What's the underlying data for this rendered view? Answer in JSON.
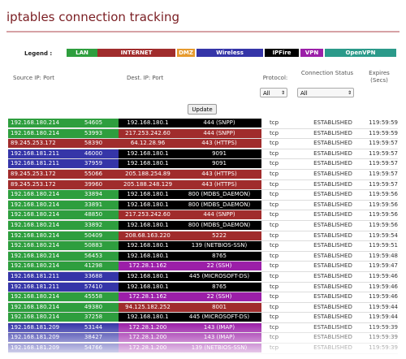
{
  "title": "iptables connection tracking",
  "legend": {
    "label": "Legend :",
    "items": [
      {
        "label": "LAN",
        "color": "#2e9e3e"
      },
      {
        "label": "INTERNET",
        "color": "#a02c2c"
      },
      {
        "label": "DMZ",
        "color": "#e69a2e"
      },
      {
        "label": "Wireless",
        "color": "#3535a8"
      },
      {
        "label": "IPFire",
        "color": "#000000"
      },
      {
        "label": "VPN",
        "color": "#9b1fa8"
      },
      {
        "label": "OpenVPN",
        "color": "#2b9a8a"
      }
    ]
  },
  "headers": {
    "src": "Source IP: Port",
    "dst": "Dest. IP: Port",
    "proto": "Protocol:",
    "status": "Connection Status",
    "expires": "Expires (Secs)"
  },
  "filters": {
    "protocol": "All",
    "status": "All"
  },
  "update_label": "Update",
  "rows": [
    {
      "src": "192.168.180.214",
      "sport": "54605",
      "dst": "192.168.180.1",
      "dport": "444 (SNPP)",
      "proto": "tcp",
      "status": "ESTABLISHED",
      "expires": "119:59:59",
      "sc": "#2e9e3e",
      "dc": "#000000"
    },
    {
      "src": "192.168.180.214",
      "sport": "53993",
      "dst": "217.253.242.60",
      "dport": "444 (SNPP)",
      "proto": "tcp",
      "status": "ESTABLISHED",
      "expires": "119:59:59",
      "sc": "#2e9e3e",
      "dc": "#a02c2c"
    },
    {
      "src": "89.245.253.172",
      "sport": "58390",
      "dst": "64.12.28.96",
      "dport": "443 (HTTPS)",
      "proto": "tcp",
      "status": "ESTABLISHED",
      "expires": "119:59:57",
      "sc": "#a02c2c",
      "dc": "#a02c2c"
    },
    {
      "src": "192.168.181.211",
      "sport": "46000",
      "dst": "192.168.180.1",
      "dport": "9091",
      "proto": "tcp",
      "status": "ESTABLISHED",
      "expires": "119:59:57",
      "sc": "#3535a8",
      "dc": "#000000"
    },
    {
      "src": "192.168.181.211",
      "sport": "37959",
      "dst": "192.168.180.1",
      "dport": "9091",
      "proto": "tcp",
      "status": "ESTABLISHED",
      "expires": "119:59:57",
      "sc": "#3535a8",
      "dc": "#000000"
    },
    {
      "src": "89.245.253.172",
      "sport": "55066",
      "dst": "205.188.254.89",
      "dport": "443 (HTTPS)",
      "proto": "tcp",
      "status": "ESTABLISHED",
      "expires": "119:59:57",
      "sc": "#a02c2c",
      "dc": "#a02c2c"
    },
    {
      "src": "89.245.253.172",
      "sport": "39960",
      "dst": "205.188.248.129",
      "dport": "443 (HTTPS)",
      "proto": "tcp",
      "status": "ESTABLISHED",
      "expires": "119:59:57",
      "sc": "#a02c2c",
      "dc": "#a02c2c"
    },
    {
      "src": "192.168.180.214",
      "sport": "33894",
      "dst": "192.168.180.1",
      "dport": "800 (MDBS_DAEMON)",
      "proto": "tcp",
      "status": "ESTABLISHED",
      "expires": "119:59:56",
      "sc": "#2e9e3e",
      "dc": "#000000"
    },
    {
      "src": "192.168.180.214",
      "sport": "33891",
      "dst": "192.168.180.1",
      "dport": "800 (MDBS_DAEMON)",
      "proto": "tcp",
      "status": "ESTABLISHED",
      "expires": "119:59:56",
      "sc": "#2e9e3e",
      "dc": "#000000"
    },
    {
      "src": "192.168.180.214",
      "sport": "48850",
      "dst": "217.253.242.60",
      "dport": "444 (SNPP)",
      "proto": "tcp",
      "status": "ESTABLISHED",
      "expires": "119:59:56",
      "sc": "#2e9e3e",
      "dc": "#a02c2c"
    },
    {
      "src": "192.168.180.214",
      "sport": "33892",
      "dst": "192.168.180.1",
      "dport": "800 (MDBS_DAEMON)",
      "proto": "tcp",
      "status": "ESTABLISHED",
      "expires": "119:59:56",
      "sc": "#2e9e3e",
      "dc": "#000000"
    },
    {
      "src": "192.168.180.214",
      "sport": "50409",
      "dst": "208.68.163.220",
      "dport": "5222",
      "proto": "tcp",
      "status": "ESTABLISHED",
      "expires": "119:59:54",
      "sc": "#2e9e3e",
      "dc": "#a02c2c"
    },
    {
      "src": "192.168.180.214",
      "sport": "50883",
      "dst": "192.168.180.1",
      "dport": "139 (NETBIOS-SSN)",
      "proto": "tcp",
      "status": "ESTABLISHED",
      "expires": "119:59:51",
      "sc": "#2e9e3e",
      "dc": "#000000"
    },
    {
      "src": "192.168.180.214",
      "sport": "56453",
      "dst": "192.168.180.1",
      "dport": "8765",
      "proto": "tcp",
      "status": "ESTABLISHED",
      "expires": "119:59:48",
      "sc": "#2e9e3e",
      "dc": "#000000"
    },
    {
      "src": "192.168.180.214",
      "sport": "41298",
      "dst": "172.28.1.162",
      "dport": "22 (SSH)",
      "proto": "tcp",
      "status": "ESTABLISHED",
      "expires": "119:59:47",
      "sc": "#2e9e3e",
      "dc": "#9b1fa8"
    },
    {
      "src": "192.168.181.211",
      "sport": "33688",
      "dst": "192.168.180.1",
      "dport": "445 (MICROSOFT-DS)",
      "proto": "tcp",
      "status": "ESTABLISHED",
      "expires": "119:59:46",
      "sc": "#3535a8",
      "dc": "#000000"
    },
    {
      "src": "192.168.181.211",
      "sport": "57410",
      "dst": "192.168.180.1",
      "dport": "8765",
      "proto": "tcp",
      "status": "ESTABLISHED",
      "expires": "119:59:46",
      "sc": "#3535a8",
      "dc": "#000000"
    },
    {
      "src": "192.168.180.214",
      "sport": "45558",
      "dst": "172.28.1.162",
      "dport": "22 (SSH)",
      "proto": "tcp",
      "status": "ESTABLISHED",
      "expires": "119:59:46",
      "sc": "#2e9e3e",
      "dc": "#9b1fa8"
    },
    {
      "src": "192.168.180.214",
      "sport": "49380",
      "dst": "94.125.182.252",
      "dport": "8001",
      "proto": "tcp",
      "status": "ESTABLISHED",
      "expires": "119:59:44",
      "sc": "#2e9e3e",
      "dc": "#a02c2c"
    },
    {
      "src": "192.168.180.214",
      "sport": "37258",
      "dst": "192.168.180.1",
      "dport": "445 (MICROSOFT-DS)",
      "proto": "tcp",
      "status": "ESTABLISHED",
      "expires": "119:59:44",
      "sc": "#2e9e3e",
      "dc": "#000000"
    },
    {
      "src": "192.168.181.209",
      "sport": "53144",
      "dst": "172.28.1.200",
      "dport": "143 (IMAP)",
      "proto": "tcp",
      "status": "ESTABLISHED",
      "expires": "119:59:39",
      "sc": "#3535a8",
      "dc": "#9b1fa8"
    },
    {
      "src": "192.168.181.209",
      "sport": "38427",
      "dst": "172.28.1.200",
      "dport": "143 (IMAP)",
      "proto": "tcp",
      "status": "ESTABLISHED",
      "expires": "119:59:39",
      "sc": "#3535a8",
      "dc": "#9b1fa8"
    },
    {
      "src": "192.168.181.209",
      "sport": "54766",
      "dst": "172.28.1.200",
      "dport": "139 (NETBIOS-SSN)",
      "proto": "tcp",
      "status": "ESTABLISHED",
      "expires": "119:59:39",
      "sc": "#3535a8",
      "dc": "#9b1fa8"
    }
  ]
}
